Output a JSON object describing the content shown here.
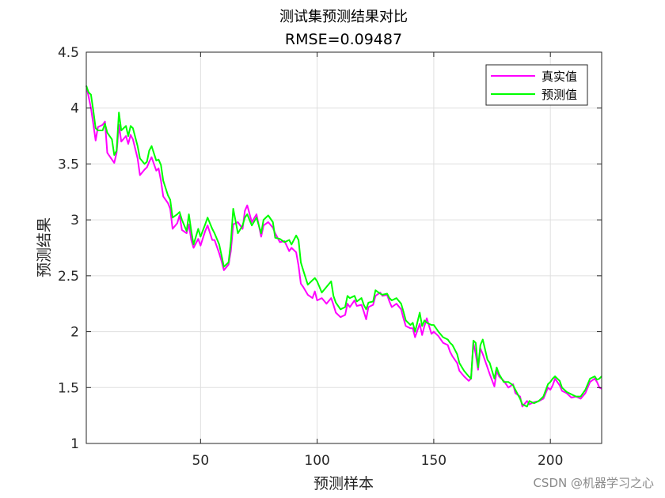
{
  "watermark": "CSDN @机器学习之心",
  "chart_data": {
    "type": "line",
    "title": "测试集预测结果对比",
    "subtitle": "RMSE=0.09487",
    "xlabel": "预测样本",
    "ylabel": "预测结果",
    "xlim": [
      1,
      222
    ],
    "ylim": [
      1,
      4.5
    ],
    "xticks": [
      50,
      100,
      150,
      200
    ],
    "yticks": [
      1,
      1.5,
      2,
      2.5,
      3,
      3.5,
      4,
      4.5
    ],
    "grid": true,
    "legend_position": "top-right",
    "series": [
      {
        "name": "真实值",
        "color": "#ff00ff",
        "points": [
          [
            1,
            4.2
          ],
          [
            3,
            4.0
          ],
          [
            4,
            3.86
          ],
          [
            5,
            3.71
          ],
          [
            6,
            3.83
          ],
          [
            8,
            3.85
          ],
          [
            9,
            3.88
          ],
          [
            10,
            3.6
          ],
          [
            12,
            3.54
          ],
          [
            13,
            3.51
          ],
          [
            14,
            3.6
          ],
          [
            15,
            3.85
          ],
          [
            16,
            3.7
          ],
          [
            18,
            3.75
          ],
          [
            19,
            3.68
          ],
          [
            20,
            3.76
          ],
          [
            21,
            3.72
          ],
          [
            23,
            3.55
          ],
          [
            24,
            3.4
          ],
          [
            26,
            3.45
          ],
          [
            27,
            3.47
          ],
          [
            28,
            3.52
          ],
          [
            29,
            3.56
          ],
          [
            31,
            3.44
          ],
          [
            32,
            3.46
          ],
          [
            33,
            3.35
          ],
          [
            34,
            3.21
          ],
          [
            36,
            3.15
          ],
          [
            37,
            3.1
          ],
          [
            38,
            2.92
          ],
          [
            40,
            2.97
          ],
          [
            41,
            3.04
          ],
          [
            42,
            2.91
          ],
          [
            44,
            2.88
          ],
          [
            45,
            2.96
          ],
          [
            46,
            2.82
          ],
          [
            47,
            2.75
          ],
          [
            49,
            2.83
          ],
          [
            50,
            2.77
          ],
          [
            52,
            2.9
          ],
          [
            53,
            2.95
          ],
          [
            55,
            2.82
          ],
          [
            56,
            2.82
          ],
          [
            58,
            2.7
          ],
          [
            59,
            2.63
          ],
          [
            60,
            2.55
          ],
          [
            62,
            2.6
          ],
          [
            63,
            2.72
          ],
          [
            64,
            2.96
          ],
          [
            66,
            2.98
          ],
          [
            68,
            2.92
          ],
          [
            69,
            3.08
          ],
          [
            70,
            3.13
          ],
          [
            72,
            2.98
          ],
          [
            74,
            3.05
          ],
          [
            76,
            2.85
          ],
          [
            77,
            2.95
          ],
          [
            79,
            2.98
          ],
          [
            81,
            2.93
          ],
          [
            82,
            2.88
          ],
          [
            84,
            2.8
          ],
          [
            86,
            2.81
          ],
          [
            88,
            2.72
          ],
          [
            89,
            2.75
          ],
          [
            91,
            2.71
          ],
          [
            92,
            2.59
          ],
          [
            93,
            2.43
          ],
          [
            94,
            2.4
          ],
          [
            96,
            2.33
          ],
          [
            98,
            2.3
          ],
          [
            99,
            2.36
          ],
          [
            100,
            2.28
          ],
          [
            102,
            2.3
          ],
          [
            104,
            2.25
          ],
          [
            106,
            2.3
          ],
          [
            107,
            2.24
          ],
          [
            108,
            2.17
          ],
          [
            110,
            2.13
          ],
          [
            112,
            2.15
          ],
          [
            113,
            2.25
          ],
          [
            114,
            2.22
          ],
          [
            116,
            2.28
          ],
          [
            117,
            2.23
          ],
          [
            119,
            2.24
          ],
          [
            120,
            2.18
          ],
          [
            121,
            2.11
          ],
          [
            122,
            2.22
          ],
          [
            124,
            2.24
          ],
          [
            125,
            2.32
          ],
          [
            127,
            2.35
          ],
          [
            128,
            2.32
          ],
          [
            130,
            2.33
          ],
          [
            131,
            2.27
          ],
          [
            132,
            2.22
          ],
          [
            134,
            2.25
          ],
          [
            136,
            2.2
          ],
          [
            137,
            2.12
          ],
          [
            138,
            2.05
          ],
          [
            140,
            2.03
          ],
          [
            141,
            2.03
          ],
          [
            142,
            1.95
          ],
          [
            144,
            2.07
          ],
          [
            145,
            1.97
          ],
          [
            146,
            2.05
          ],
          [
            147,
            2.12
          ],
          [
            149,
            1.98
          ],
          [
            150,
            2.0
          ],
          [
            152,
            1.96
          ],
          [
            154,
            1.9
          ],
          [
            156,
            1.88
          ],
          [
            157,
            1.82
          ],
          [
            158,
            1.78
          ],
          [
            160,
            1.72
          ],
          [
            161,
            1.65
          ],
          [
            163,
            1.6
          ],
          [
            165,
            1.56
          ],
          [
            166,
            1.58
          ],
          [
            167,
            1.9
          ],
          [
            168,
            1.8
          ],
          [
            169,
            1.66
          ],
          [
            170,
            1.85
          ],
          [
            171,
            1.8
          ],
          [
            173,
            1.68
          ],
          [
            174,
            1.62
          ],
          [
            176,
            1.51
          ],
          [
            177,
            1.65
          ],
          [
            178,
            1.6
          ],
          [
            180,
            1.56
          ],
          [
            182,
            1.5
          ],
          [
            184,
            1.53
          ],
          [
            185,
            1.45
          ],
          [
            187,
            1.42
          ],
          [
            188,
            1.33
          ],
          [
            190,
            1.38
          ],
          [
            191,
            1.35
          ],
          [
            193,
            1.37
          ],
          [
            195,
            1.38
          ],
          [
            197,
            1.4
          ],
          [
            199,
            1.5
          ],
          [
            200,
            1.48
          ],
          [
            201,
            1.52
          ],
          [
            202,
            1.58
          ],
          [
            204,
            1.52
          ],
          [
            205,
            1.47
          ],
          [
            207,
            1.45
          ],
          [
            209,
            1.41
          ],
          [
            211,
            1.42
          ],
          [
            213,
            1.4
          ],
          [
            215,
            1.45
          ],
          [
            217,
            1.55
          ],
          [
            219,
            1.58
          ],
          [
            220,
            1.55
          ],
          [
            221,
            1.5
          ],
          [
            222,
            1.49
          ]
        ]
      },
      {
        "name": "预测值",
        "color": "#00ff00",
        "points": [
          [
            1,
            4.2
          ],
          [
            2,
            4.14
          ],
          [
            3,
            4.12
          ],
          [
            4,
            3.98
          ],
          [
            5,
            3.82
          ],
          [
            6,
            3.8
          ],
          [
            8,
            3.8
          ],
          [
            9,
            3.86
          ],
          [
            10,
            3.78
          ],
          [
            12,
            3.72
          ],
          [
            13,
            3.58
          ],
          [
            14,
            3.62
          ],
          [
            15,
            3.96
          ],
          [
            16,
            3.8
          ],
          [
            18,
            3.84
          ],
          [
            19,
            3.75
          ],
          [
            20,
            3.84
          ],
          [
            21,
            3.82
          ],
          [
            23,
            3.66
          ],
          [
            24,
            3.55
          ],
          [
            26,
            3.5
          ],
          [
            27,
            3.52
          ],
          [
            28,
            3.62
          ],
          [
            29,
            3.66
          ],
          [
            31,
            3.53
          ],
          [
            32,
            3.54
          ],
          [
            33,
            3.49
          ],
          [
            34,
            3.35
          ],
          [
            36,
            3.22
          ],
          [
            37,
            3.18
          ],
          [
            38,
            3.02
          ],
          [
            40,
            3.05
          ],
          [
            41,
            3.07
          ],
          [
            42,
            3.0
          ],
          [
            44,
            2.9
          ],
          [
            45,
            3.05
          ],
          [
            46,
            2.9
          ],
          [
            47,
            2.78
          ],
          [
            49,
            2.92
          ],
          [
            50,
            2.85
          ],
          [
            52,
            2.96
          ],
          [
            53,
            3.02
          ],
          [
            55,
            2.92
          ],
          [
            56,
            2.88
          ],
          [
            58,
            2.78
          ],
          [
            59,
            2.68
          ],
          [
            60,
            2.58
          ],
          [
            62,
            2.62
          ],
          [
            63,
            2.8
          ],
          [
            64,
            3.1
          ],
          [
            66,
            2.88
          ],
          [
            68,
            2.95
          ],
          [
            69,
            3.02
          ],
          [
            70,
            3.05
          ],
          [
            72,
            2.95
          ],
          [
            74,
            3.02
          ],
          [
            76,
            2.88
          ],
          [
            77,
            3.0
          ],
          [
            79,
            3.04
          ],
          [
            81,
            2.98
          ],
          [
            82,
            2.84
          ],
          [
            84,
            2.83
          ],
          [
            86,
            2.8
          ],
          [
            88,
            2.82
          ],
          [
            89,
            2.78
          ],
          [
            91,
            2.86
          ],
          [
            92,
            2.82
          ],
          [
            93,
            2.62
          ],
          [
            94,
            2.55
          ],
          [
            96,
            2.42
          ],
          [
            98,
            2.46
          ],
          [
            99,
            2.48
          ],
          [
            100,
            2.45
          ],
          [
            102,
            2.35
          ],
          [
            104,
            2.4
          ],
          [
            106,
            2.45
          ],
          [
            107,
            2.32
          ],
          [
            108,
            2.26
          ],
          [
            110,
            2.2
          ],
          [
            112,
            2.22
          ],
          [
            113,
            2.32
          ],
          [
            114,
            2.3
          ],
          [
            116,
            2.32
          ],
          [
            117,
            2.27
          ],
          [
            119,
            2.3
          ],
          [
            120,
            2.24
          ],
          [
            121,
            2.2
          ],
          [
            122,
            2.26
          ],
          [
            124,
            2.27
          ],
          [
            125,
            2.37
          ],
          [
            127,
            2.34
          ],
          [
            128,
            2.33
          ],
          [
            130,
            2.34
          ],
          [
            131,
            2.3
          ],
          [
            132,
            2.28
          ],
          [
            134,
            2.3
          ],
          [
            136,
            2.25
          ],
          [
            137,
            2.18
          ],
          [
            138,
            2.1
          ],
          [
            140,
            2.06
          ],
          [
            141,
            2.08
          ],
          [
            142,
            2.0
          ],
          [
            144,
            2.17
          ],
          [
            145,
            2.05
          ],
          [
            146,
            2.1
          ],
          [
            147,
            2.08
          ],
          [
            149,
            2.06
          ],
          [
            150,
            2.06
          ],
          [
            152,
            2.0
          ],
          [
            154,
            1.95
          ],
          [
            156,
            1.93
          ],
          [
            157,
            1.9
          ],
          [
            158,
            1.88
          ],
          [
            160,
            1.8
          ],
          [
            161,
            1.72
          ],
          [
            163,
            1.65
          ],
          [
            165,
            1.6
          ],
          [
            166,
            1.58
          ],
          [
            167,
            1.92
          ],
          [
            168,
            1.9
          ],
          [
            169,
            1.68
          ],
          [
            170,
            1.88
          ],
          [
            171,
            1.93
          ],
          [
            173,
            1.75
          ],
          [
            174,
            1.72
          ],
          [
            176,
            1.58
          ],
          [
            177,
            1.68
          ],
          [
            178,
            1.62
          ],
          [
            180,
            1.55
          ],
          [
            182,
            1.55
          ],
          [
            184,
            1.52
          ],
          [
            185,
            1.48
          ],
          [
            187,
            1.4
          ],
          [
            188,
            1.35
          ],
          [
            190,
            1.33
          ],
          [
            191,
            1.38
          ],
          [
            193,
            1.36
          ],
          [
            195,
            1.38
          ],
          [
            197,
            1.42
          ],
          [
            199,
            1.53
          ],
          [
            200,
            1.55
          ],
          [
            201,
            1.58
          ],
          [
            202,
            1.6
          ],
          [
            204,
            1.56
          ],
          [
            205,
            1.5
          ],
          [
            207,
            1.46
          ],
          [
            209,
            1.44
          ],
          [
            211,
            1.42
          ],
          [
            213,
            1.42
          ],
          [
            215,
            1.48
          ],
          [
            217,
            1.58
          ],
          [
            219,
            1.6
          ],
          [
            220,
            1.57
          ],
          [
            221,
            1.58
          ],
          [
            222,
            1.6
          ]
        ]
      }
    ]
  }
}
